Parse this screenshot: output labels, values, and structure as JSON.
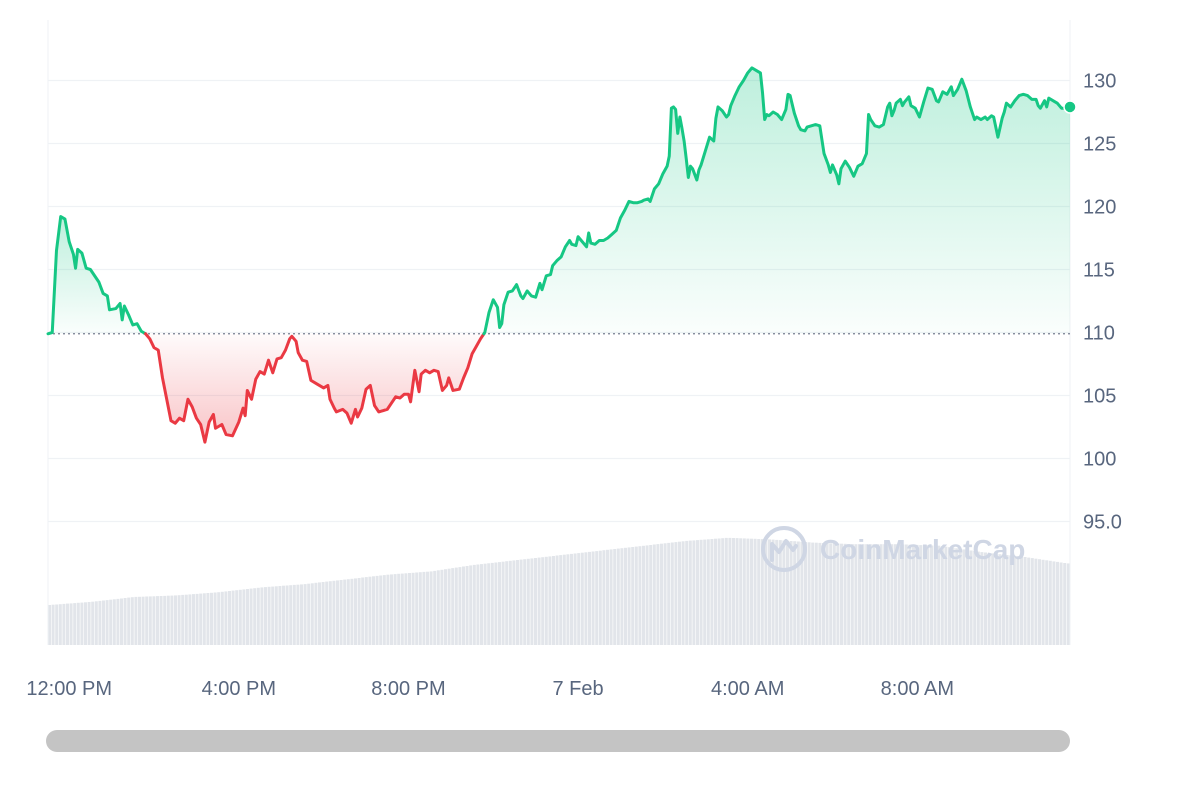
{
  "chart_data": {
    "type": "line",
    "baseline": 109.9,
    "ylim": [
      85.2,
      134.8
    ],
    "yticks": [
      {
        "value": 95,
        "label": "95.0"
      },
      {
        "value": 100,
        "label": "100"
      },
      {
        "value": 105,
        "label": "105"
      },
      {
        "value": 110,
        "label": "110"
      },
      {
        "value": 115,
        "label": "115"
      },
      {
        "value": 120,
        "label": "120"
      },
      {
        "value": 125,
        "label": "125"
      },
      {
        "value": 130,
        "label": "130"
      }
    ],
    "xlim": [
      0,
      24.1
    ],
    "xticks": [
      {
        "x": 0.5,
        "label": "12:00 PM"
      },
      {
        "x": 4.5,
        "label": "4:00 PM"
      },
      {
        "x": 8.5,
        "label": "8:00 PM"
      },
      {
        "x": 12.5,
        "label": "7 Feb"
      },
      {
        "x": 16.5,
        "label": "4:00 AM"
      },
      {
        "x": 20.5,
        "label": "8:00 AM"
      }
    ],
    "price_series": [
      [
        0.0,
        109.9
      ],
      [
        0.1,
        110.0
      ],
      [
        0.2,
        116.5
      ],
      [
        0.3,
        119.2
      ],
      [
        0.4,
        119.0
      ],
      [
        0.5,
        117.2
      ],
      [
        0.6,
        116.2
      ],
      [
        0.65,
        115.1
      ],
      [
        0.7,
        116.6
      ],
      [
        0.8,
        116.3
      ],
      [
        0.9,
        115.1
      ],
      [
        1.0,
        115.0
      ],
      [
        1.2,
        114.0
      ],
      [
        1.3,
        113.1
      ],
      [
        1.4,
        112.9
      ],
      [
        1.45,
        111.8
      ],
      [
        1.6,
        111.9
      ],
      [
        1.7,
        112.3
      ],
      [
        1.75,
        111.0
      ],
      [
        1.8,
        112.1
      ],
      [
        1.9,
        111.4
      ],
      [
        2.0,
        110.6
      ],
      [
        2.1,
        110.7
      ],
      [
        2.2,
        110.1
      ],
      [
        2.3,
        109.9
      ],
      [
        2.4,
        109.5
      ],
      [
        2.5,
        108.8
      ],
      [
        2.6,
        108.6
      ],
      [
        2.7,
        106.4
      ],
      [
        2.8,
        104.7
      ],
      [
        2.9,
        103.0
      ],
      [
        3.0,
        102.8
      ],
      [
        3.1,
        103.2
      ],
      [
        3.2,
        103.0
      ],
      [
        3.3,
        104.7
      ],
      [
        3.4,
        104.1
      ],
      [
        3.5,
        103.2
      ],
      [
        3.6,
        102.7
      ],
      [
        3.7,
        101.3
      ],
      [
        3.8,
        102.9
      ],
      [
        3.9,
        103.5
      ],
      [
        3.95,
        102.4
      ],
      [
        4.1,
        102.7
      ],
      [
        4.2,
        101.9
      ],
      [
        4.35,
        101.8
      ],
      [
        4.5,
        102.9
      ],
      [
        4.6,
        104.0
      ],
      [
        4.65,
        103.4
      ],
      [
        4.7,
        105.4
      ],
      [
        4.8,
        104.7
      ],
      [
        4.9,
        106.3
      ],
      [
        5.0,
        106.9
      ],
      [
        5.1,
        106.7
      ],
      [
        5.2,
        107.8
      ],
      [
        5.3,
        106.8
      ],
      [
        5.4,
        107.9
      ],
      [
        5.5,
        108.0
      ],
      [
        5.6,
        108.6
      ],
      [
        5.7,
        109.5
      ],
      [
        5.75,
        109.7
      ],
      [
        5.85,
        109.3
      ],
      [
        5.9,
        108.4
      ],
      [
        6.0,
        107.8
      ],
      [
        6.1,
        107.7
      ],
      [
        6.2,
        106.2
      ],
      [
        6.35,
        105.9
      ],
      [
        6.5,
        105.6
      ],
      [
        6.6,
        105.8
      ],
      [
        6.65,
        104.7
      ],
      [
        6.75,
        104.0
      ],
      [
        6.8,
        103.7
      ],
      [
        6.95,
        103.9
      ],
      [
        7.05,
        103.6
      ],
      [
        7.15,
        102.8
      ],
      [
        7.25,
        103.9
      ],
      [
        7.3,
        103.3
      ],
      [
        7.4,
        104.0
      ],
      [
        7.5,
        105.5
      ],
      [
        7.6,
        105.8
      ],
      [
        7.7,
        104.2
      ],
      [
        7.8,
        103.7
      ],
      [
        7.9,
        103.8
      ],
      [
        8.0,
        103.9
      ],
      [
        8.1,
        104.4
      ],
      [
        8.2,
        104.9
      ],
      [
        8.3,
        104.8
      ],
      [
        8.4,
        105.1
      ],
      [
        8.5,
        105.1
      ],
      [
        8.55,
        104.5
      ],
      [
        8.65,
        107.0
      ],
      [
        8.75,
        105.3
      ],
      [
        8.8,
        106.7
      ],
      [
        8.9,
        107.0
      ],
      [
        9.0,
        106.8
      ],
      [
        9.1,
        107.0
      ],
      [
        9.2,
        106.9
      ],
      [
        9.3,
        105.4
      ],
      [
        9.4,
        105.8
      ],
      [
        9.45,
        106.4
      ],
      [
        9.55,
        105.4
      ],
      [
        9.7,
        105.5
      ],
      [
        9.8,
        106.4
      ],
      [
        9.9,
        107.2
      ],
      [
        10.0,
        108.3
      ],
      [
        10.1,
        108.9
      ],
      [
        10.2,
        109.5
      ],
      [
        10.3,
        110.0
      ],
      [
        10.4,
        111.6
      ],
      [
        10.5,
        112.6
      ],
      [
        10.6,
        112.0
      ],
      [
        10.65,
        110.4
      ],
      [
        10.7,
        110.7
      ],
      [
        10.75,
        112.2
      ],
      [
        10.85,
        113.2
      ],
      [
        10.95,
        113.3
      ],
      [
        11.05,
        113.8
      ],
      [
        11.15,
        112.9
      ],
      [
        11.2,
        112.7
      ],
      [
        11.3,
        113.3
      ],
      [
        11.4,
        112.9
      ],
      [
        11.5,
        112.8
      ],
      [
        11.6,
        113.9
      ],
      [
        11.65,
        113.4
      ],
      [
        11.75,
        114.5
      ],
      [
        11.85,
        114.6
      ],
      [
        11.9,
        115.3
      ],
      [
        12.0,
        115.7
      ],
      [
        12.1,
        116.0
      ],
      [
        12.2,
        116.8
      ],
      [
        12.3,
        117.3
      ],
      [
        12.35,
        117.0
      ],
      [
        12.45,
        116.9
      ],
      [
        12.5,
        117.6
      ],
      [
        12.6,
        117.2
      ],
      [
        12.7,
        116.8
      ],
      [
        12.75,
        117.9
      ],
      [
        12.8,
        117.1
      ],
      [
        12.9,
        117.0
      ],
      [
        13.0,
        117.3
      ],
      [
        13.1,
        117.3
      ],
      [
        13.2,
        117.5
      ],
      [
        13.3,
        117.8
      ],
      [
        13.4,
        118.1
      ],
      [
        13.5,
        119.1
      ],
      [
        13.6,
        119.7
      ],
      [
        13.7,
        120.4
      ],
      [
        13.8,
        120.3
      ],
      [
        13.9,
        120.3
      ],
      [
        14.0,
        120.4
      ],
      [
        14.05,
        120.5
      ],
      [
        14.15,
        120.6
      ],
      [
        14.2,
        120.4
      ],
      [
        14.3,
        121.4
      ],
      [
        14.4,
        121.8
      ],
      [
        14.5,
        122.6
      ],
      [
        14.6,
        123.2
      ],
      [
        14.65,
        124.0
      ],
      [
        14.7,
        127.8
      ],
      [
        14.75,
        127.9
      ],
      [
        14.8,
        127.7
      ],
      [
        14.85,
        125.8
      ],
      [
        14.9,
        127.1
      ],
      [
        14.95,
        126.2
      ],
      [
        15.0,
        125.2
      ],
      [
        15.05,
        123.8
      ],
      [
        15.1,
        122.3
      ],
      [
        15.15,
        123.2
      ],
      [
        15.2,
        123.0
      ],
      [
        15.3,
        122.1
      ],
      [
        15.35,
        122.9
      ],
      [
        15.4,
        123.3
      ],
      [
        15.5,
        124.4
      ],
      [
        15.6,
        125.5
      ],
      [
        15.7,
        125.2
      ],
      [
        15.75,
        127.0
      ],
      [
        15.8,
        127.9
      ],
      [
        15.9,
        127.6
      ],
      [
        16.0,
        127.1
      ],
      [
        16.05,
        127.3
      ],
      [
        16.1,
        128.0
      ],
      [
        16.2,
        128.8
      ],
      [
        16.3,
        129.5
      ],
      [
        16.4,
        130.0
      ],
      [
        16.5,
        130.6
      ],
      [
        16.6,
        131.0
      ],
      [
        16.7,
        130.8
      ],
      [
        16.8,
        130.6
      ],
      [
        16.85,
        129.0
      ],
      [
        16.9,
        126.9
      ],
      [
        16.95,
        127.3
      ],
      [
        17.0,
        127.2
      ],
      [
        17.1,
        127.5
      ],
      [
        17.2,
        127.3
      ],
      [
        17.3,
        126.9
      ],
      [
        17.4,
        127.7
      ],
      [
        17.45,
        128.9
      ],
      [
        17.5,
        128.8
      ],
      [
        17.6,
        127.4
      ],
      [
        17.7,
        126.4
      ],
      [
        17.75,
        126.1
      ],
      [
        17.85,
        126.0
      ],
      [
        17.9,
        126.3
      ],
      [
        18.0,
        126.4
      ],
      [
        18.1,
        126.5
      ],
      [
        18.2,
        126.4
      ],
      [
        18.3,
        124.2
      ],
      [
        18.4,
        123.3
      ],
      [
        18.45,
        122.7
      ],
      [
        18.5,
        123.3
      ],
      [
        18.6,
        122.5
      ],
      [
        18.65,
        121.8
      ],
      [
        18.7,
        123.0
      ],
      [
        18.8,
        123.6
      ],
      [
        18.9,
        123.1
      ],
      [
        19.0,
        122.4
      ],
      [
        19.1,
        123.2
      ],
      [
        19.2,
        123.4
      ],
      [
        19.3,
        124.2
      ],
      [
        19.35,
        127.3
      ],
      [
        19.4,
        126.9
      ],
      [
        19.5,
        126.4
      ],
      [
        19.6,
        126.3
      ],
      [
        19.7,
        126.5
      ],
      [
        19.8,
        127.9
      ],
      [
        19.85,
        128.2
      ],
      [
        19.9,
        127.2
      ],
      [
        19.95,
        127.6
      ],
      [
        20.0,
        128.2
      ],
      [
        20.1,
        128.5
      ],
      [
        20.15,
        128.0
      ],
      [
        20.2,
        128.3
      ],
      [
        20.3,
        128.7
      ],
      [
        20.35,
        128.0
      ],
      [
        20.45,
        127.8
      ],
      [
        20.55,
        127.1
      ],
      [
        20.65,
        128.3
      ],
      [
        20.75,
        129.4
      ],
      [
        20.85,
        129.3
      ],
      [
        20.95,
        128.4
      ],
      [
        21.0,
        128.3
      ],
      [
        21.1,
        129.1
      ],
      [
        21.2,
        128.9
      ],
      [
        21.3,
        129.5
      ],
      [
        21.35,
        128.8
      ],
      [
        21.45,
        129.3
      ],
      [
        21.55,
        130.1
      ],
      [
        21.65,
        129.2
      ],
      [
        21.75,
        127.9
      ],
      [
        21.85,
        126.9
      ],
      [
        21.9,
        127.1
      ],
      [
        22.0,
        126.9
      ],
      [
        22.1,
        127.1
      ],
      [
        22.15,
        126.9
      ],
      [
        22.25,
        127.2
      ],
      [
        22.3,
        127.1
      ],
      [
        22.4,
        125.5
      ],
      [
        22.5,
        127.0
      ],
      [
        22.55,
        127.5
      ],
      [
        22.6,
        128.2
      ],
      [
        22.7,
        127.9
      ],
      [
        22.8,
        128.4
      ],
      [
        22.9,
        128.8
      ],
      [
        23.0,
        128.9
      ],
      [
        23.1,
        128.8
      ],
      [
        23.2,
        128.5
      ],
      [
        23.3,
        128.5
      ],
      [
        23.35,
        128.0
      ],
      [
        23.4,
        127.8
      ],
      [
        23.5,
        128.4
      ],
      [
        23.55,
        127.9
      ],
      [
        23.6,
        128.6
      ],
      [
        23.7,
        128.4
      ],
      [
        23.8,
        128.2
      ],
      [
        23.9,
        127.8
      ],
      [
        24.0,
        127.8
      ],
      [
        24.1,
        127.9
      ]
    ],
    "volume_series": [
      [
        0,
        0.25
      ],
      [
        1,
        0.27
      ],
      [
        2,
        0.3
      ],
      [
        3,
        0.31
      ],
      [
        4,
        0.33
      ],
      [
        5,
        0.36
      ],
      [
        6,
        0.38
      ],
      [
        7,
        0.41
      ],
      [
        8,
        0.44
      ],
      [
        9,
        0.46
      ],
      [
        10,
        0.5
      ],
      [
        11,
        0.53
      ],
      [
        12,
        0.56
      ],
      [
        13,
        0.59
      ],
      [
        14,
        0.62
      ],
      [
        15,
        0.65
      ],
      [
        16,
        0.67
      ],
      [
        17,
        0.66
      ],
      [
        18,
        0.64
      ],
      [
        19,
        0.63
      ],
      [
        20,
        0.63
      ],
      [
        21,
        0.62
      ],
      [
        22,
        0.58
      ],
      [
        23,
        0.55
      ],
      [
        24,
        0.51
      ]
    ],
    "colors": {
      "up": "#16c784",
      "down": "#ea3943",
      "grid": "#eff2f5",
      "baseline": "#777e90",
      "volume": "#e2e5ea",
      "axis_text": "#58667e",
      "scrollbar": "#c4c4c4",
      "watermark": "#cfd6e4"
    },
    "watermark": "CoinMarketCap"
  }
}
